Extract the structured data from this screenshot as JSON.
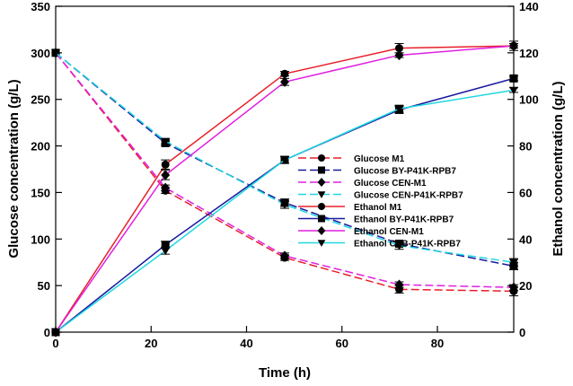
{
  "chart_data": {
    "type": "line",
    "xlabel": "Time (h)",
    "ylabel_left": "Glucose concentration (g/L)",
    "ylabel_right": "Ethanol concentration (g/L)",
    "x_range": [
      0,
      96
    ],
    "y_left_range": [
      0,
      350
    ],
    "y_right_range": [
      0,
      140
    ],
    "x_ticks": [
      0,
      20,
      40,
      60,
      80
    ],
    "y_left_ticks": [
      0,
      50,
      100,
      150,
      200,
      250,
      300,
      350
    ],
    "y_right_ticks": [
      0,
      20,
      40,
      60,
      80,
      100,
      120,
      140
    ],
    "legend_position": "center-right",
    "x": [
      0,
      23,
      48,
      72,
      96
    ],
    "series": [
      {
        "name": "Glucose M1",
        "axis": "left",
        "color": "#e8202a",
        "dash": true,
        "marker": "circle",
        "values": [
          300,
          152,
          80,
          46,
          44
        ],
        "errors": [
          0,
          3,
          3,
          4,
          5
        ]
      },
      {
        "name": "Glucose BY-P41K-RPB7",
        "axis": "left",
        "color": "#1a1aa0",
        "dash": true,
        "marker": "square",
        "values": [
          300,
          203,
          139,
          95,
          71
        ],
        "errors": [
          0,
          3,
          4,
          3,
          4
        ]
      },
      {
        "name": "Glucose CEN-M1",
        "axis": "left",
        "color": "#e020e0",
        "dash": true,
        "marker": "diamond",
        "values": [
          300,
          155,
          82,
          51,
          48
        ],
        "errors": [
          0,
          3,
          3,
          3,
          3
        ]
      },
      {
        "name": "Glucose CEN-P41K-RPB7",
        "axis": "left",
        "color": "#20d8e0",
        "dash": true,
        "marker": "triangle",
        "values": [
          300,
          205,
          137,
          93,
          75
        ],
        "errors": [
          0,
          3,
          4,
          4,
          4
        ]
      },
      {
        "name": "Ethanol M1",
        "axis": "right",
        "color": "#e8202a",
        "dash": false,
        "marker": "circle",
        "values": [
          0,
          72,
          111,
          122,
          123
        ],
        "errors": [
          0,
          2,
          1,
          2,
          2
        ]
      },
      {
        "name": "Ethanol BY-P41K-RPB7",
        "axis": "right",
        "color": "#1a1aa0",
        "dash": false,
        "marker": "square",
        "values": [
          0,
          37.5,
          74,
          95.5,
          109
        ],
        "errors": [
          0,
          1.5,
          1.5,
          1.5,
          1
        ]
      },
      {
        "name": "Ethanol CEN-M1",
        "axis": "right",
        "color": "#e020e0",
        "dash": false,
        "marker": "diamond",
        "values": [
          0,
          67.5,
          107.5,
          119,
          123
        ],
        "errors": [
          0,
          2,
          1.5,
          1,
          1
        ]
      },
      {
        "name": "Ethanol CEB-P41K-RPB7",
        "axis": "right",
        "color": "#20d8e0",
        "dash": false,
        "marker": "triangle",
        "values": [
          0,
          35,
          74,
          96,
          104
        ],
        "errors": [
          0,
          1.5,
          1.5,
          1.5,
          1
        ]
      }
    ]
  }
}
